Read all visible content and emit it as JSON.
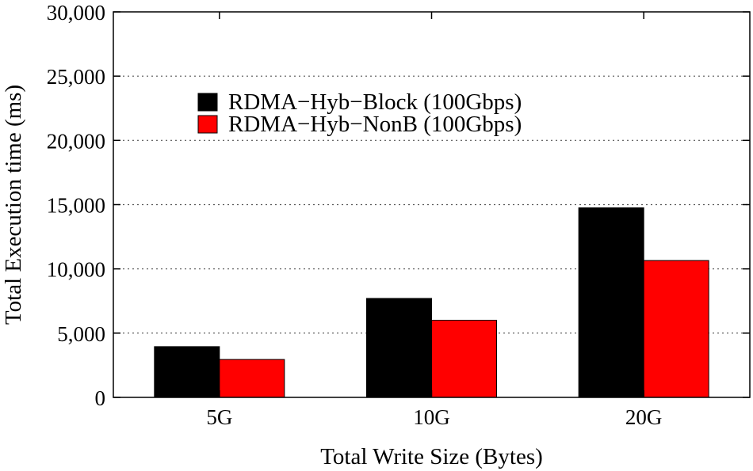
{
  "chart_data": {
    "type": "bar",
    "title": "",
    "xlabel": "Total Write Size (Bytes)",
    "ylabel": "Total Execution time (ms)",
    "categories": [
      "5G",
      "10G",
      "20G"
    ],
    "series": [
      {
        "name": "RDMA−Hyb−Block (100Gbps)",
        "color": "#000000",
        "values": [
          3950,
          7700,
          14750
        ]
      },
      {
        "name": "RDMA−Hyb−NonB (100Gbps)",
        "color": "#ff0000",
        "values": [
          2950,
          6000,
          10650
        ]
      }
    ],
    "ylim": [
      0,
      30000
    ],
    "yticks": [
      0,
      5000,
      10000,
      15000,
      20000,
      25000,
      30000
    ],
    "ytick_labels": [
      "0",
      "5,000",
      "10,000",
      "15,000",
      "20,000",
      "25,000",
      "30,000"
    ],
    "grid": "horizontal-dotted",
    "legend_position": "top-left"
  }
}
